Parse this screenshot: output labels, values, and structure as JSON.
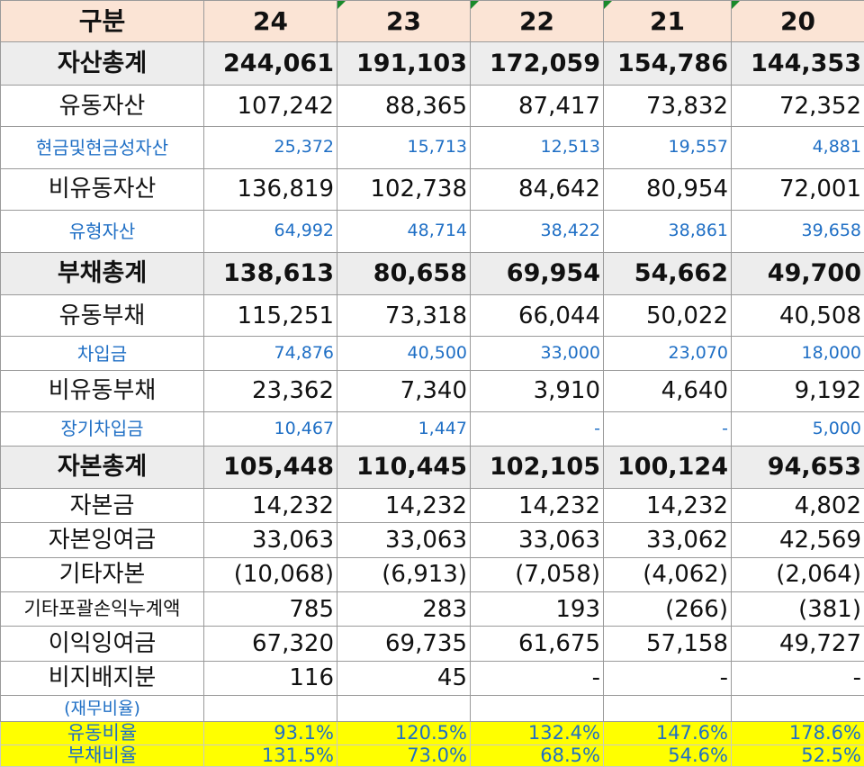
{
  "headers": [
    "구분",
    "24",
    "23",
    "22",
    "21",
    "20"
  ],
  "rows": [
    {
      "type": "total",
      "label": "자산총계",
      "values": [
        "244,061",
        "191,103",
        "172,059",
        "154,786",
        "144,353"
      ]
    },
    {
      "type": "norm",
      "label": "유동자산",
      "values": [
        "107,242",
        "88,365",
        "87,417",
        "73,832",
        "72,352"
      ]
    },
    {
      "type": "sub",
      "label": "현금및현금성자산",
      "values": [
        "25,372",
        "15,713",
        "12,513",
        "19,557",
        "4,881"
      ]
    },
    {
      "type": "norm",
      "label": "비유동자산",
      "values": [
        "136,819",
        "102,738",
        "84,642",
        "80,954",
        "72,001"
      ]
    },
    {
      "type": "sub",
      "label": "유형자산",
      "values": [
        "64,992",
        "48,714",
        "38,422",
        "38,861",
        "39,658"
      ]
    },
    {
      "type": "total",
      "label": "부채총계",
      "values": [
        "138,613",
        "80,658",
        "69,954",
        "54,662",
        "49,700"
      ]
    },
    {
      "type": "norm",
      "label": "유동부채",
      "values": [
        "115,251",
        "73,318",
        "66,044",
        "50,022",
        "40,508"
      ]
    },
    {
      "type": "sub",
      "label": "차입금",
      "values": [
        "74,876",
        "40,500",
        "33,000",
        "23,070",
        "18,000"
      ]
    },
    {
      "type": "norm",
      "label": "비유동부채",
      "values": [
        "23,362",
        "7,340",
        "3,910",
        "4,640",
        "9,192"
      ]
    },
    {
      "type": "sub",
      "label": "장기차입금",
      "values": [
        "10,467",
        "1,447",
        "-",
        "-",
        "5,000"
      ]
    },
    {
      "type": "total",
      "label": "자본총계",
      "values": [
        "105,448",
        "110,445",
        "102,105",
        "100,124",
        "94,653"
      ]
    },
    {
      "type": "norm",
      "label": "자본금",
      "values": [
        "14,232",
        "14,232",
        "14,232",
        "14,232",
        "4,802"
      ]
    },
    {
      "type": "norm",
      "label": "자본잉여금",
      "values": [
        "33,063",
        "33,063",
        "33,063",
        "33,062",
        "42,569"
      ]
    },
    {
      "type": "norm",
      "label": "기타자본",
      "values": [
        "(10,068)",
        "(6,913)",
        "(7,058)",
        "(4,062)",
        "(2,064)"
      ]
    },
    {
      "type": "norm",
      "label": "기타포괄손익누계액",
      "values": [
        "785",
        "283",
        "193",
        "(266)",
        "(381)"
      ]
    },
    {
      "type": "norm",
      "label": "이익잉여금",
      "values": [
        "67,320",
        "69,735",
        "61,675",
        "57,158",
        "49,727"
      ]
    },
    {
      "type": "norm",
      "label": "비지배지분",
      "values": [
        "116",
        "45",
        "-",
        "-",
        "-"
      ]
    },
    {
      "type": "rhead",
      "label": "(재무비율)",
      "values": [
        "",
        "",
        "",
        "",
        ""
      ]
    },
    {
      "type": "ratio",
      "label": "유동비율",
      "values": [
        "93.1%",
        "120.5%",
        "132.4%",
        "147.6%",
        "178.6%"
      ]
    },
    {
      "type": "ratio",
      "label": "부채비율",
      "values": [
        "131.5%",
        "73.0%",
        "68.5%",
        "54.6%",
        "52.5%"
      ]
    }
  ]
}
